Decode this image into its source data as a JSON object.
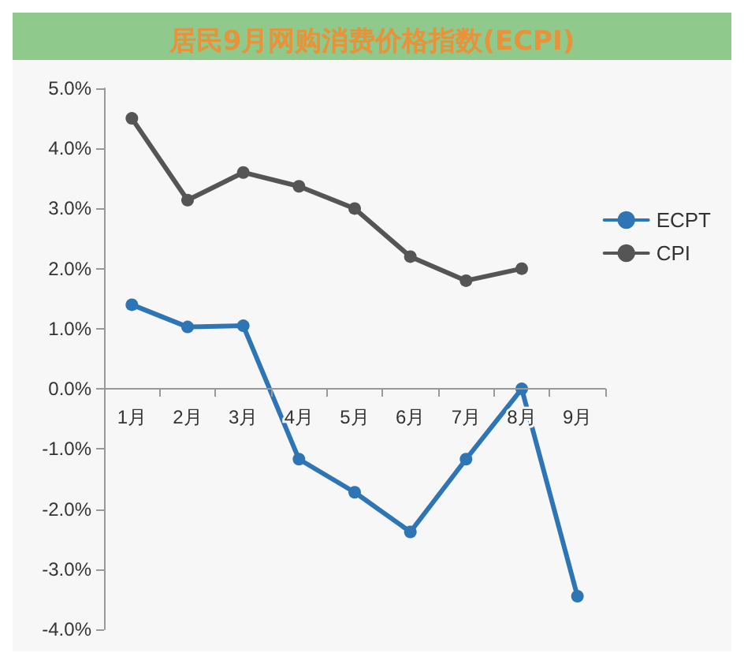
{
  "chart_data": {
    "type": "line",
    "title": "居民9月网购消费价格指数(ECPI)",
    "categories": [
      "1月",
      "2月",
      "3月",
      "4月",
      "5月",
      "6月",
      "7月",
      "8月",
      "9月"
    ],
    "series": [
      {
        "name": "ECPT",
        "color": "#2e75b6",
        "values": [
          1.4,
          1.03,
          1.05,
          -1.17,
          -1.72,
          -2.38,
          -1.17,
          0.0,
          -3.45
        ]
      },
      {
        "name": "CPI",
        "color": "#555555",
        "values": [
          4.5,
          3.14,
          3.6,
          3.37,
          3.0,
          2.2,
          1.8,
          2.0,
          null
        ]
      }
    ],
    "ylim": [
      -4,
      5
    ],
    "yticks": [
      {
        "value": -4,
        "label": "-4.0%"
      },
      {
        "value": -3,
        "label": "-3.0%"
      },
      {
        "value": -2,
        "label": "-2.0%"
      },
      {
        "value": -1,
        "label": "-1.0%"
      },
      {
        "value": 0,
        "label": "0.0%"
      },
      {
        "value": 1,
        "label": "1.0%"
      },
      {
        "value": 2,
        "label": "2.0%"
      },
      {
        "value": 3,
        "label": "3.0%"
      },
      {
        "value": 4,
        "label": "4.0%"
      },
      {
        "value": 5,
        "label": "5.0%"
      }
    ],
    "grid": false,
    "legend": "right",
    "marker": "circle",
    "line_style": "solid"
  }
}
